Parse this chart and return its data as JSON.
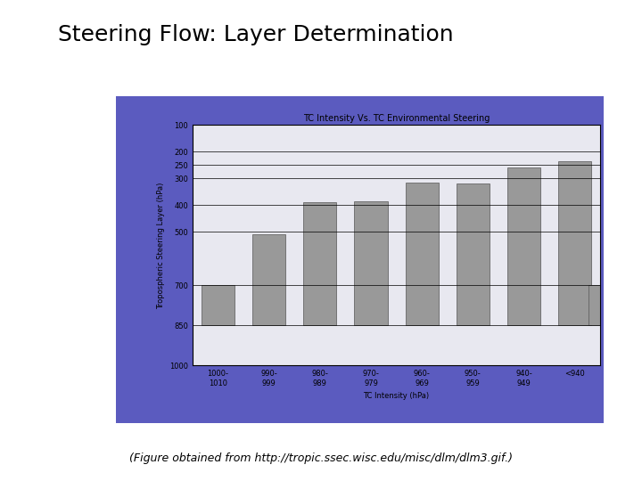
{
  "title": "Steering Flow: Layer Determination",
  "chart_title": "TC Intensity Vs. TC Environmental Steering",
  "xlabel": "TC Intensity (hPa)",
  "ylabel": "Tropospheric Steering Layer (hPa)",
  "categories": [
    "1000-\n1010",
    "990-\n999",
    "980-\n989",
    "970-\n979",
    "960-\n969",
    "950-\n959",
    "940-\n949",
    "<940"
  ],
  "bar_tops": [
    700,
    510,
    390,
    385,
    315,
    320,
    260,
    235
  ],
  "bar_bottoms": [
    850,
    850,
    850,
    850,
    850,
    850,
    850,
    850
  ],
  "yticks": [
    100,
    200,
    250,
    300,
    400,
    500,
    700,
    850,
    1000
  ],
  "bar_color": "#999999",
  "bar_edge_color": "#555555",
  "chart_bg_color": "#e8e8f0",
  "outer_bg_color": "#5b5bbf",
  "caption": "(Figure obtained from http://tropic.ssec.wisc.edu/misc/dlm/dlm3.gif.)",
  "title_fontsize": 18,
  "chart_title_fontsize": 7,
  "axis_label_fontsize": 6,
  "tick_fontsize": 6,
  "caption_fontsize": 9
}
